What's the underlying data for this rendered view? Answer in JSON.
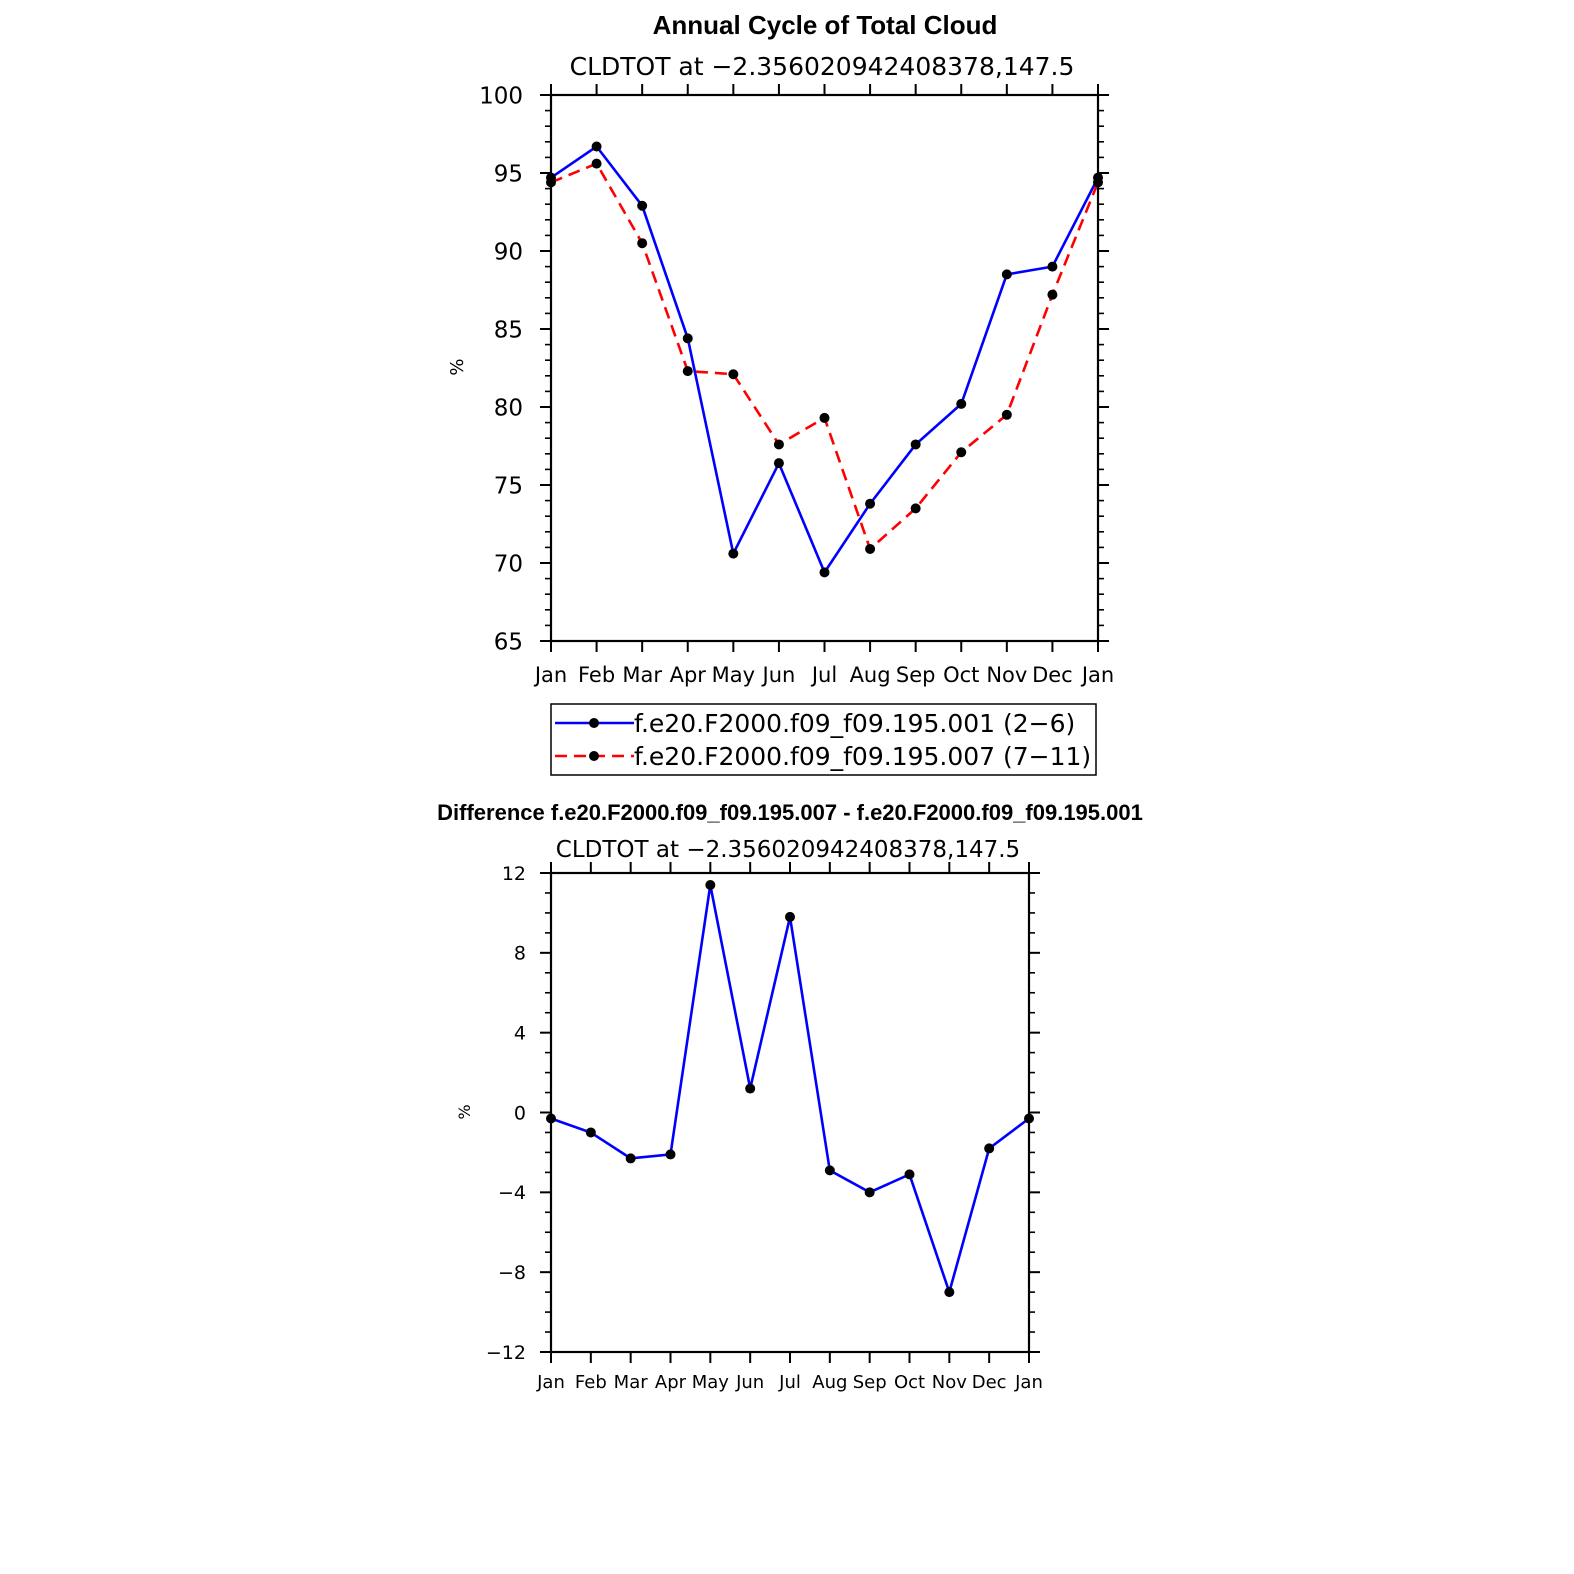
{
  "chart_data": [
    {
      "type": "line",
      "title": "Annual Cycle of Total Cloud",
      "subtitle": "CLDTOT at −2.356020942408378,147.5",
      "xlabel": "",
      "ylabel": "%",
      "categories": [
        "Jan",
        "Feb",
        "Mar",
        "Apr",
        "May",
        "Jun",
        "Jul",
        "Aug",
        "Sep",
        "Oct",
        "Nov",
        "Dec",
        "Jan"
      ],
      "ylim": [
        65,
        100
      ],
      "yticks": [
        "65",
        "70",
        "75",
        "80",
        "85",
        "90",
        "95",
        "100"
      ],
      "grid": false,
      "legend_position": "bottom",
      "series": [
        {
          "name": "f.e20.F2000.f09_f09.195.001 (2−6)",
          "color": "#0000ff",
          "dash": "solid",
          "values": [
            94.7,
            96.7,
            92.9,
            84.4,
            70.6,
            76.4,
            69.4,
            73.8,
            77.6,
            80.2,
            88.5,
            89.0,
            94.7
          ]
        },
        {
          "name": "f.e20.F2000.f09_f09.195.007 (7−11)",
          "color": "#ff0000",
          "dash": "dashed",
          "values": [
            94.4,
            95.6,
            90.5,
            82.3,
            82.1,
            77.6,
            79.3,
            70.9,
            73.5,
            77.1,
            79.5,
            87.2,
            94.4
          ]
        }
      ]
    },
    {
      "type": "line",
      "title": "Difference f.e20.F2000.f09_f09.195.007 - f.e20.F2000.f09_f09.195.001",
      "subtitle": "CLDTOT at −2.356020942408378,147.5",
      "xlabel": "",
      "ylabel": "%",
      "categories": [
        "Jan",
        "Feb",
        "Mar",
        "Apr",
        "May",
        "Jun",
        "Jul",
        "Aug",
        "Sep",
        "Oct",
        "Nov",
        "Dec",
        "Jan"
      ],
      "ylim": [
        -12,
        12
      ],
      "yticks": [
        "−12",
        "−8",
        "−4",
        "0",
        "4",
        "8",
        "12"
      ],
      "grid": false,
      "series": [
        {
          "color": "#0000ff",
          "values": [
            -0.3,
            -1.0,
            -2.3,
            -2.1,
            11.4,
            1.2,
            9.8,
            -2.9,
            -4.0,
            -3.1,
            -9.0,
            -1.8,
            -0.3
          ]
        }
      ]
    }
  ],
  "colors": {
    "series_blue": "#0000ff",
    "series_red": "#ff0000",
    "marker": "#000000",
    "axis": "#000000",
    "background": "#ffffff"
  }
}
